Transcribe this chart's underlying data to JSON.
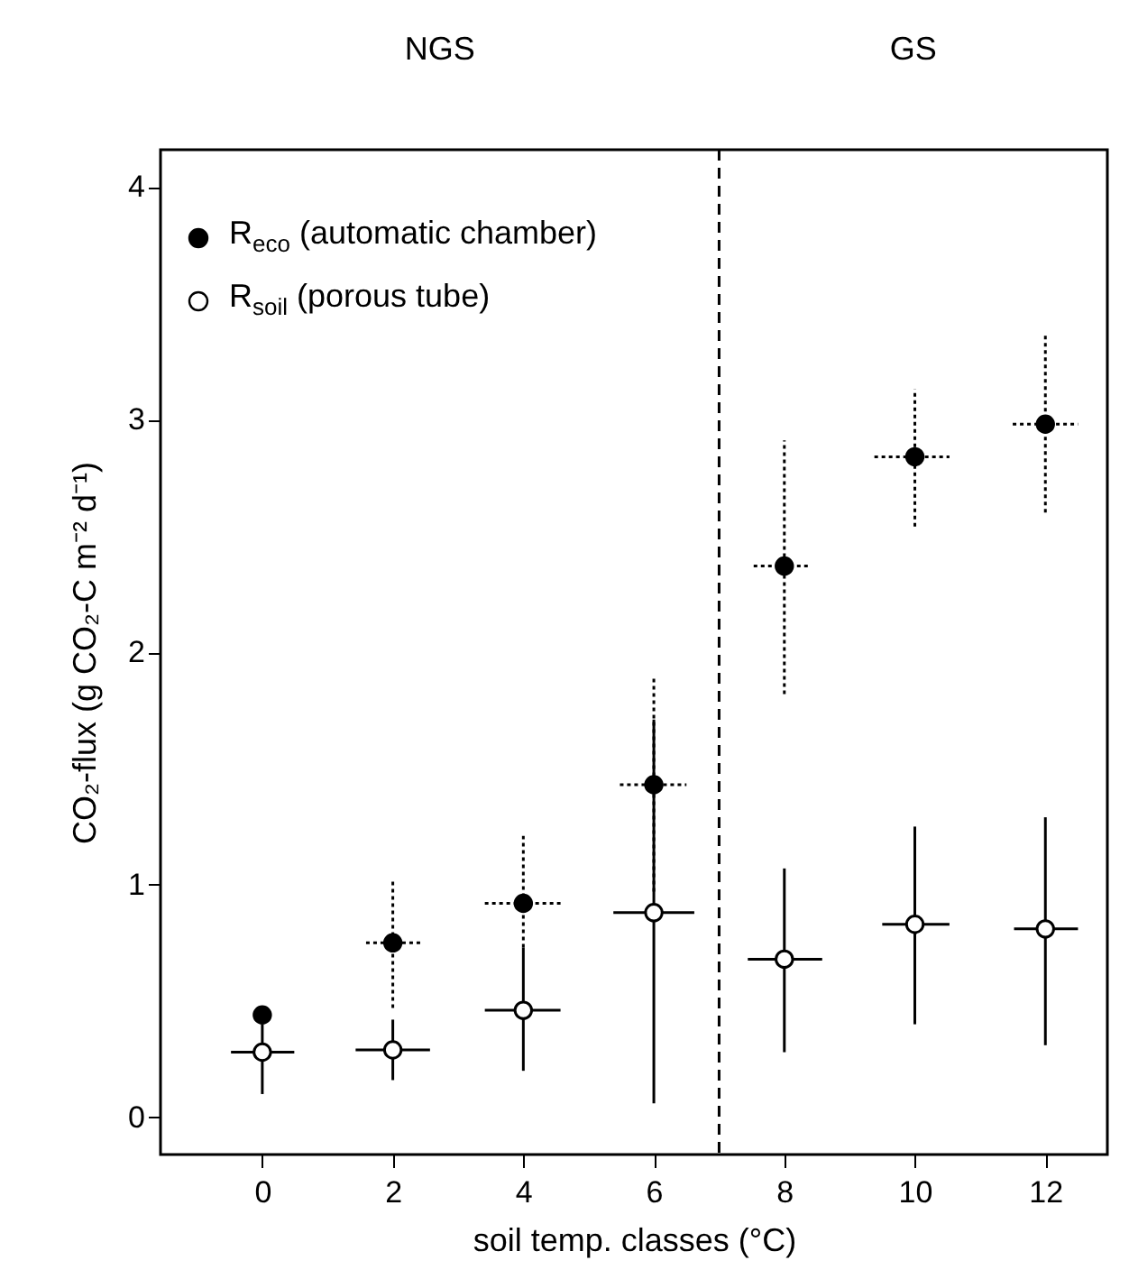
{
  "chart_data": {
    "type": "scatter",
    "xlabel": "soil temp. classes (°C)",
    "ylabel": "CO₂-flux  (g  CO₂-C m⁻² d⁻¹)",
    "xlim": [
      -1.56,
      12.95
    ],
    "xticks": [
      0,
      2,
      4,
      6,
      8,
      10,
      12
    ],
    "ylim": [
      -0.16,
      4.16
    ],
    "yticks": [
      0,
      1,
      2,
      3,
      4
    ],
    "grid": false,
    "legend": "top left",
    "marker": "circle",
    "ref_lines": [
      {
        "axis": "x",
        "value": 7,
        "line_style": "dashed",
        "color": "#000000"
      }
    ],
    "annotations": [
      "NGS",
      "GS"
    ],
    "series": [
      {
        "name": "R$_{eco}$ (automatic chamber)",
        "color": "#000000",
        "line_style": "dotted",
        "x": [
          0,
          2,
          4,
          6,
          8,
          10,
          12
        ],
        "values": [
          0.44,
          0.75,
          0.92,
          1.43,
          2.37,
          2.84,
          2.98
        ],
        "errors": [
          null,
          [
            0.47,
            1.02
          ],
          [
            0.73,
            1.21
          ],
          [
            0.97,
            1.89
          ],
          [
            1.82,
            2.91
          ],
          [
            2.54,
            3.13
          ],
          [
            2.6,
            3.36
          ]
        ],
        "xerrors": [
          null,
          [
            1.59,
            2.42
          ],
          [
            3.41,
            4.57
          ],
          [
            5.48,
            6.5
          ],
          [
            7.53,
            8.38
          ],
          [
            9.38,
            10.53
          ],
          [
            11.5,
            12.5
          ]
        ]
      },
      {
        "name": "R$_{soil}$ (porous tube)",
        "color": "#000000",
        "line_style": "solid",
        "x": [
          0,
          2,
          4,
          6,
          8,
          10,
          12
        ],
        "values": [
          0.28,
          0.29,
          0.46,
          0.88,
          0.68,
          0.83,
          0.81
        ],
        "errors": [
          [
            0.1,
            0.4
          ],
          [
            0.16,
            0.42
          ],
          [
            0.2,
            0.73
          ],
          [
            0.06,
            1.71
          ],
          [
            0.28,
            1.07
          ],
          [
            0.4,
            1.25
          ],
          [
            0.31,
            1.29
          ]
        ],
        "xerrors": [
          [
            -0.48,
            0.49
          ],
          [
            1.43,
            2.57
          ],
          [
            3.41,
            4.57
          ],
          [
            5.38,
            6.62
          ],
          [
            7.44,
            8.58
          ],
          [
            9.5,
            10.53
          ],
          [
            11.52,
            12.5
          ]
        ]
      }
    ]
  }
}
